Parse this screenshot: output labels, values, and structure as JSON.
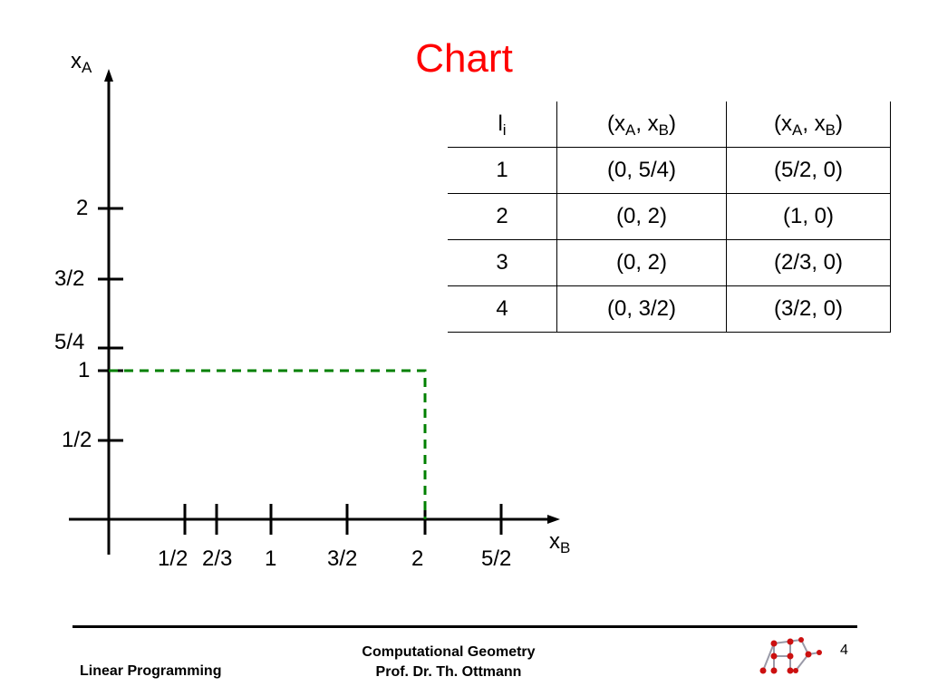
{
  "title": "Chart",
  "axes": {
    "y_label": {
      "base": "x",
      "sub": "A"
    },
    "x_label": {
      "base": "x",
      "sub": "B"
    },
    "y_ticks": [
      "2",
      "3/2",
      "5/4",
      "1",
      "1/2"
    ],
    "x_ticks": [
      "1/2",
      "2/3",
      "1",
      "3/2",
      "2",
      "5/2"
    ]
  },
  "table": {
    "header": [
      {
        "base": "l",
        "sub": "i"
      },
      {
        "pre": "(x",
        "sub1": "A",
        "mid": ", x",
        "sub2": "B",
        "post": ")"
      },
      {
        "pre": "(x",
        "sub1": "A",
        "mid": ", x",
        "sub2": "B",
        "post": ")"
      }
    ],
    "rows": [
      [
        "1",
        "(0, 5/4)",
        "(5/2, 0)"
      ],
      [
        "2",
        "(0, 2)",
        "(1, 0)"
      ],
      [
        "3",
        "(0, 2)",
        "(2/3, 0)"
      ],
      [
        "4",
        "(0, 3/2)",
        "(3/2, 0)"
      ]
    ]
  },
  "dashed_rectangle": {
    "x_value": 2,
    "y_value": 1,
    "color": "#008000"
  },
  "footer": {
    "left": "Linear Programming",
    "center_line1": "Computational Geometry",
    "center_line2": "Prof. Dr. Th. Ottmann",
    "page_number": "4"
  }
}
